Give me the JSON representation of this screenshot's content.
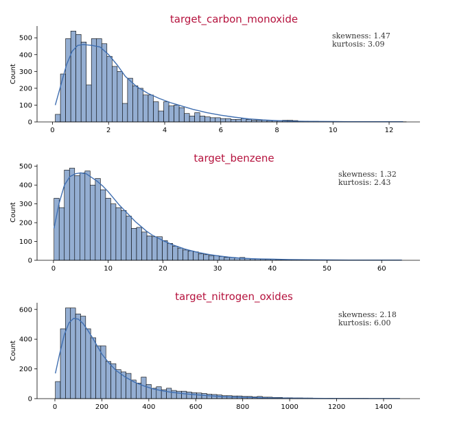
{
  "chart_data": [
    {
      "type": "bar",
      "title": "target_carbon_monoxide",
      "ylabel": "Count",
      "xlim": [
        -0.55,
        13.1
      ],
      "ylim": [
        0,
        570
      ],
      "xticks": [
        0,
        2,
        4,
        6,
        8,
        10,
        12
      ],
      "yticks": [
        0,
        100,
        200,
        300,
        400,
        500
      ],
      "stats": {
        "skewness": "skewness: 1.47",
        "kurtosis": "kurtosis: 3.09"
      },
      "bin_start": 0.1,
      "bin_width": 0.184,
      "counts": [
        45,
        285,
        495,
        540,
        520,
        475,
        220,
        495,
        495,
        465,
        390,
        330,
        300,
        110,
        260,
        215,
        200,
        160,
        160,
        120,
        65,
        120,
        95,
        100,
        85,
        50,
        35,
        55,
        35,
        30,
        25,
        25,
        20,
        20,
        15,
        15,
        20,
        15,
        10,
        10,
        10,
        8,
        8,
        8,
        10,
        10,
        8,
        5,
        5,
        4,
        4,
        3,
        3,
        3,
        3,
        2,
        2,
        2,
        2,
        2,
        2,
        2,
        2,
        2,
        1,
        1,
        1,
        1
      ],
      "kde": [
        [
          0.1,
          100
        ],
        [
          0.3,
          220
        ],
        [
          0.5,
          340
        ],
        [
          0.7,
          420
        ],
        [
          0.9,
          455
        ],
        [
          1.1,
          460
        ],
        [
          1.4,
          455
        ],
        [
          1.7,
          445
        ],
        [
          2.0,
          400
        ],
        [
          2.3,
          340
        ],
        [
          2.6,
          270
        ],
        [
          3.0,
          210
        ],
        [
          3.4,
          170
        ],
        [
          3.8,
          140
        ],
        [
          4.2,
          115
        ],
        [
          4.6,
          95
        ],
        [
          5.0,
          75
        ],
        [
          5.5,
          55
        ],
        [
          6.0,
          40
        ],
        [
          6.5,
          28
        ],
        [
          7.0,
          18
        ],
        [
          7.5,
          12
        ],
        [
          8.0,
          8
        ],
        [
          8.5,
          5
        ],
        [
          9.0,
          3
        ],
        [
          10,
          2
        ],
        [
          11,
          1
        ],
        [
          12.5,
          1
        ]
      ]
    },
    {
      "type": "bar",
      "title": "target_benzene",
      "ylabel": "Count",
      "xlim": [
        -3.0,
        67.0
      ],
      "ylim": [
        0,
        510
      ],
      "xticks": [
        0,
        10,
        20,
        30,
        40,
        50,
        60
      ],
      "yticks": [
        0,
        100,
        200,
        300,
        400,
        500
      ],
      "stats": {
        "skewness": "skewness: 1.32",
        "kurtosis": "kurtosis: 2.43"
      },
      "bin_start": 0.1,
      "bin_width": 0.943,
      "counts": [
        330,
        280,
        480,
        490,
        450,
        465,
        475,
        400,
        435,
        375,
        330,
        300,
        280,
        265,
        235,
        170,
        175,
        150,
        130,
        125,
        125,
        105,
        90,
        75,
        65,
        55,
        50,
        45,
        35,
        30,
        25,
        25,
        20,
        15,
        15,
        12,
        15,
        10,
        8,
        8,
        6,
        5,
        5,
        4,
        4,
        3,
        3,
        3,
        2,
        2,
        2,
        2,
        2,
        2,
        2,
        2,
        1,
        1,
        1,
        1,
        1,
        1,
        1,
        1,
        1,
        1,
        1
      ],
      "kde": [
        [
          0.1,
          170
        ],
        [
          1.0,
          300
        ],
        [
          2.0,
          400
        ],
        [
          3.0,
          445
        ],
        [
          4.0,
          460
        ],
        [
          5.0,
          465
        ],
        [
          6.0,
          460
        ],
        [
          7.0,
          440
        ],
        [
          8.0,
          420
        ],
        [
          9.0,
          395
        ],
        [
          10.0,
          365
        ],
        [
          11.0,
          330
        ],
        [
          12.0,
          295
        ],
        [
          13.0,
          265
        ],
        [
          14.0,
          235
        ],
        [
          15.0,
          205
        ],
        [
          16.0,
          180
        ],
        [
          17.0,
          155
        ],
        [
          18.0,
          135
        ],
        [
          19.0,
          120
        ],
        [
          20.0,
          105
        ],
        [
          22.0,
          80
        ],
        [
          24.0,
          60
        ],
        [
          26.0,
          45
        ],
        [
          28.0,
          33
        ],
        [
          30.0,
          24
        ],
        [
          32.0,
          17
        ],
        [
          34.0,
          12
        ],
        [
          36.0,
          9
        ],
        [
          38.0,
          7
        ],
        [
          40.0,
          6
        ],
        [
          43.0,
          4
        ],
        [
          46.0,
          3
        ],
        [
          50.0,
          2
        ],
        [
          55.0,
          1
        ],
        [
          63.7,
          1
        ]
      ]
    },
    {
      "type": "bar",
      "title": "target_nitrogen_oxides",
      "ylabel": "Count",
      "xlim": [
        -76,
        1555
      ],
      "ylim": [
        0,
        645
      ],
      "xticks": [
        0,
        200,
        400,
        600,
        800,
        1000,
        1200,
        1400
      ],
      "yticks": [
        0,
        200,
        400,
        600
      ],
      "stats": {
        "skewness": "skewness: 2.18",
        "kurtosis": "kurtosis: 6.00"
      },
      "bin_start": 2,
      "bin_width": 21.5,
      "counts": [
        115,
        470,
        610,
        610,
        570,
        555,
        470,
        410,
        355,
        355,
        250,
        235,
        195,
        180,
        170,
        125,
        105,
        145,
        95,
        70,
        80,
        60,
        70,
        55,
        50,
        50,
        45,
        40,
        38,
        35,
        30,
        28,
        25,
        20,
        20,
        18,
        18,
        15,
        15,
        12,
        15,
        10,
        10,
        8,
        8,
        6,
        6,
        5,
        5,
        4,
        4,
        3,
        3,
        3,
        3,
        2,
        2,
        2,
        2,
        2,
        2,
        2,
        1,
        1,
        1,
        1,
        1,
        1
      ],
      "kde": [
        [
          2,
          170
        ],
        [
          20,
          300
        ],
        [
          40,
          430
        ],
        [
          60,
          510
        ],
        [
          80,
          540
        ],
        [
          100,
          535
        ],
        [
          120,
          505
        ],
        [
          140,
          460
        ],
        [
          160,
          410
        ],
        [
          180,
          355
        ],
        [
          200,
          300
        ],
        [
          230,
          240
        ],
        [
          260,
          190
        ],
        [
          300,
          145
        ],
        [
          340,
          110
        ],
        [
          380,
          85
        ],
        [
          420,
          65
        ],
        [
          460,
          52
        ],
        [
          500,
          42
        ],
        [
          550,
          33
        ],
        [
          600,
          26
        ],
        [
          650,
          20
        ],
        [
          700,
          15
        ],
        [
          750,
          11
        ],
        [
          800,
          9
        ],
        [
          850,
          7
        ],
        [
          900,
          5
        ],
        [
          1000,
          3
        ],
        [
          1100,
          2
        ],
        [
          1200,
          1
        ],
        [
          1470,
          1
        ]
      ]
    }
  ]
}
